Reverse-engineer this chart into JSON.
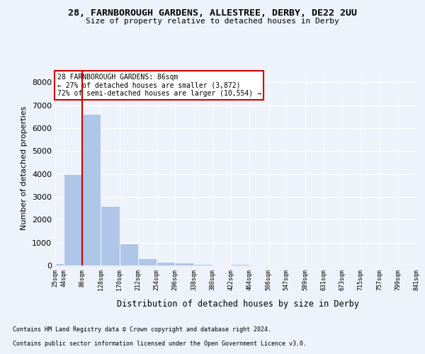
{
  "title_line1": "28, FARNBOROUGH GARDENS, ALLESTREE, DERBY, DE22 2UU",
  "title_line2": "Size of property relative to detached houses in Derby",
  "xlabel": "Distribution of detached houses by size in Derby",
  "ylabel": "Number of detached properties",
  "annotation_line1": "28 FARNBOROUGH GARDENS: 86sqm",
  "annotation_line2": "← 27% of detached houses are smaller (3,872)",
  "annotation_line3": "72% of semi-detached houses are larger (10,554) →",
  "property_size_sqm": 86,
  "bar_edges": [
    25,
    44,
    86,
    128,
    170,
    212,
    254,
    296,
    338,
    380,
    422,
    464,
    506,
    547,
    589,
    631,
    673,
    715,
    757,
    799,
    841
  ],
  "bar_heights": [
    80,
    4000,
    6600,
    2600,
    950,
    320,
    140,
    110,
    70,
    0,
    75,
    0,
    0,
    0,
    0,
    0,
    0,
    0,
    0,
    0
  ],
  "bar_color": "#aec6e8",
  "vline_color": "#cc0000",
  "annotation_box_edge_color": "#cc0000",
  "annotation_box_face_color": "#ffffff",
  "background_color": "#eef2fa",
  "axes_face_color": "#eef2fa",
  "grid_color": "#ffffff",
  "ylim": [
    0,
    8500
  ],
  "yticks": [
    0,
    1000,
    2000,
    3000,
    4000,
    5000,
    6000,
    7000,
    8000
  ],
  "tick_labels": [
    "25sqm",
    "44sqm",
    "86sqm",
    "128sqm",
    "170sqm",
    "212sqm",
    "254sqm",
    "296sqm",
    "338sqm",
    "380sqm",
    "422sqm",
    "464sqm",
    "506sqm",
    "547sqm",
    "589sqm",
    "631sqm",
    "673sqm",
    "715sqm",
    "757sqm",
    "799sqm",
    "841sqm"
  ],
  "footnote1": "Contains HM Land Registry data © Crown copyright and database right 2024.",
  "footnote2": "Contains public sector information licensed under the Open Government Licence v3.0."
}
